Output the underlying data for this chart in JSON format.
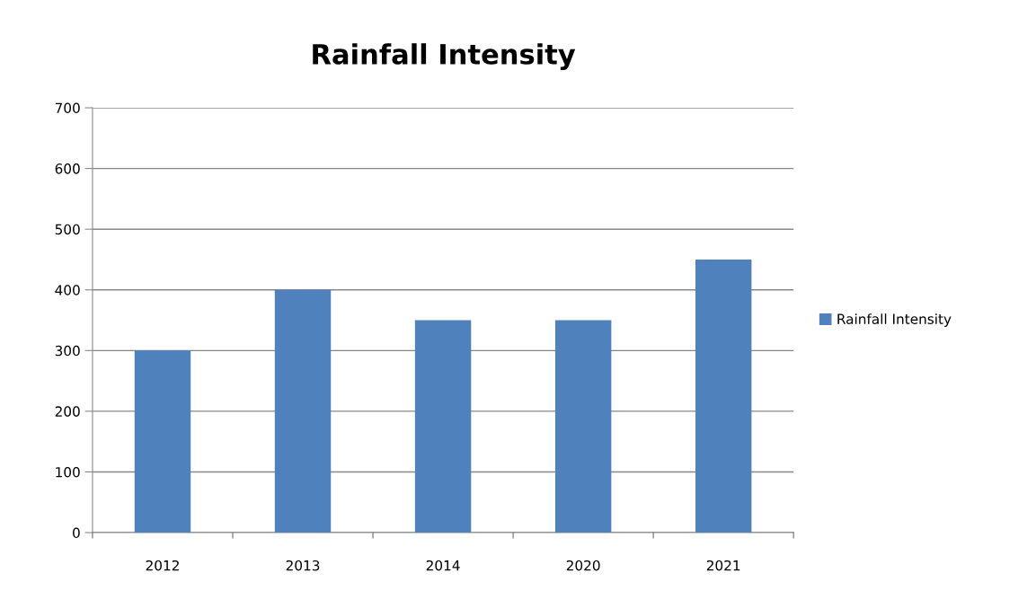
{
  "chart_data": {
    "type": "bar",
    "title": "Rainfall Intensity",
    "categories": [
      "2012",
      "2013",
      "2014",
      "2020",
      "2021"
    ],
    "series": [
      {
        "name": "Rainfall Intensity",
        "color": "#4f81bd",
        "values": [
          300,
          400,
          350,
          350,
          450
        ]
      }
    ],
    "ylim": [
      0,
      700
    ],
    "yticks": [
      0,
      100,
      200,
      300,
      400,
      500,
      600,
      700
    ],
    "grid": "y",
    "legend": "right"
  }
}
